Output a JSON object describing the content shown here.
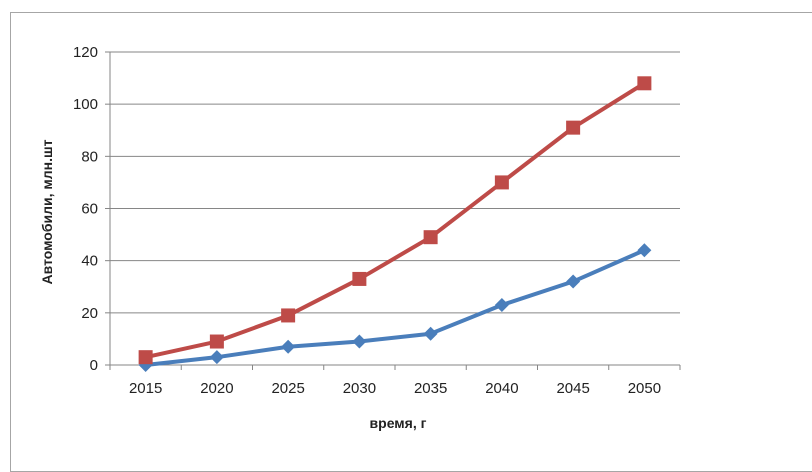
{
  "chart_data": {
    "type": "line",
    "title": "",
    "xlabel": "время, г",
    "ylabel": "Автомобили, млн.шт",
    "categories": [
      "2015",
      "2020",
      "2025",
      "2030",
      "2035",
      "2040",
      "2045",
      "2050"
    ],
    "ylim": [
      0,
      120
    ],
    "yticks": [
      "0",
      "20",
      "40",
      "60",
      "80",
      "100",
      "120"
    ],
    "grid": true,
    "legend": "none",
    "series": [
      {
        "color": "#4a7ebb",
        "marker": "diamond",
        "values": [
          0,
          3,
          7,
          9,
          12,
          23,
          32,
          44
        ]
      },
      {
        "color": "#be4b48",
        "marker": "square",
        "values": [
          3,
          9,
          19,
          33,
          49,
          70,
          91,
          108
        ]
      }
    ]
  }
}
